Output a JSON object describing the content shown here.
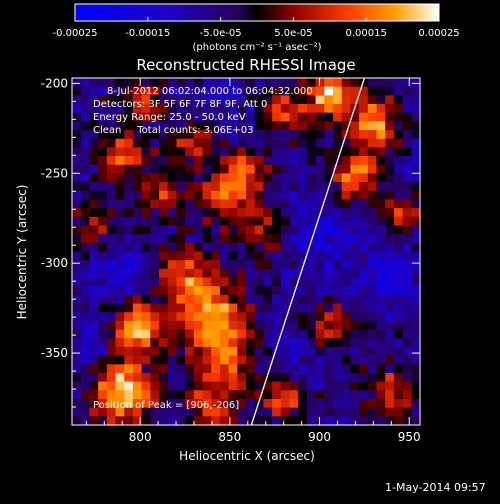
{
  "chart_data": {
    "type": "heatmap",
    "title": "Reconstructed RHESSI Image",
    "xlabel": "Heliocentric X (arcsec)",
    "ylabel": "Heliocentric Y (arcsec)",
    "xlim": [
      762,
      956
    ],
    "ylim": [
      -390,
      -197
    ],
    "x_ticks": [
      "800",
      "850",
      "900",
      "950"
    ],
    "x_tick_values": [
      800,
      850,
      900,
      950
    ],
    "y_ticks": [
      "-200",
      "-250",
      "-300",
      "-350"
    ],
    "y_tick_values": [
      -200,
      -250,
      -300,
      -350
    ],
    "colorbar": {
      "ticks": [
        "-0.00025",
        "-0.00015",
        "-5.0e-05",
        "5.0e-05",
        "0.00015",
        "0.00025"
      ],
      "tick_values": [
        -0.00025,
        -0.00015,
        -5e-05,
        5e-05,
        0.00015,
        0.00025
      ],
      "range": [
        -0.00025,
        0.00025
      ],
      "unit_label": "(photons cm⁻² s⁻¹ asec⁻²)"
    },
    "annotations": {
      "time_range": "8-Jul-2012 06:02:04.000 to 06:04:32.000",
      "detectors": "Detectors: 3F 5F 6F 7F 8F 9F, Att 0",
      "energy_range": "Energy Range: 25.0 - 50.0 keV",
      "clean_counts": "Clean     Total counts: 3.06E+03",
      "peak_position": "Position of Peak = [906,-206]"
    },
    "limb_line": [
      [
        862,
        -390
      ],
      [
        925,
        -197
      ]
    ],
    "hotspots": [
      {
        "x": 790,
        "y": -372,
        "amp": 1.0,
        "s": 12
      },
      {
        "x": 798,
        "y": -335,
        "amp": 0.85,
        "s": 10
      },
      {
        "x": 838,
        "y": -328,
        "amp": 0.8,
        "s": 14
      },
      {
        "x": 822,
        "y": -305,
        "amp": 0.55,
        "s": 10
      },
      {
        "x": 848,
        "y": -355,
        "amp": 0.6,
        "s": 12
      },
      {
        "x": 840,
        "y": -382,
        "amp": 0.55,
        "s": 10
      },
      {
        "x": 870,
        "y": -282,
        "amp": 0.45,
        "s": 10
      },
      {
        "x": 860,
        "y": -248,
        "amp": 0.5,
        "s": 9
      },
      {
        "x": 848,
        "y": -262,
        "amp": 0.6,
        "s": 10
      },
      {
        "x": 812,
        "y": -262,
        "amp": 0.45,
        "s": 10
      },
      {
        "x": 790,
        "y": -240,
        "amp": 0.6,
        "s": 9
      },
      {
        "x": 830,
        "y": -232,
        "amp": 0.5,
        "s": 9
      },
      {
        "x": 906,
        "y": -206,
        "amp": 1.0,
        "s": 8
      },
      {
        "x": 882,
        "y": -215,
        "amp": 0.55,
        "s": 9
      },
      {
        "x": 930,
        "y": -222,
        "amp": 0.8,
        "s": 10
      },
      {
        "x": 920,
        "y": -250,
        "amp": 0.7,
        "s": 10
      },
      {
        "x": 945,
        "y": -275,
        "amp": 0.45,
        "s": 9
      },
      {
        "x": 905,
        "y": -335,
        "amp": 0.45,
        "s": 10
      },
      {
        "x": 880,
        "y": -375,
        "amp": 0.65,
        "s": 8
      },
      {
        "x": 940,
        "y": -372,
        "amp": 0.5,
        "s": 10
      },
      {
        "x": 775,
        "y": -280,
        "amp": 0.35,
        "s": 10
      },
      {
        "x": 800,
        "y": -210,
        "amp": 0.45,
        "s": 9
      }
    ],
    "coldspots": [
      {
        "x": 788,
        "y": -305,
        "amp": 0.55,
        "s": 12
      },
      {
        "x": 900,
        "y": -285,
        "amp": 0.5,
        "s": 14
      },
      {
        "x": 940,
        "y": -305,
        "amp": 0.55,
        "s": 12
      },
      {
        "x": 885,
        "y": -352,
        "amp": 0.35,
        "s": 10
      },
      {
        "x": 845,
        "y": -210,
        "amp": 0.35,
        "s": 10
      },
      {
        "x": 770,
        "y": -345,
        "amp": 0.35,
        "s": 9
      }
    ],
    "grid": false
  },
  "timestamp": "1-May-2014 09:57"
}
